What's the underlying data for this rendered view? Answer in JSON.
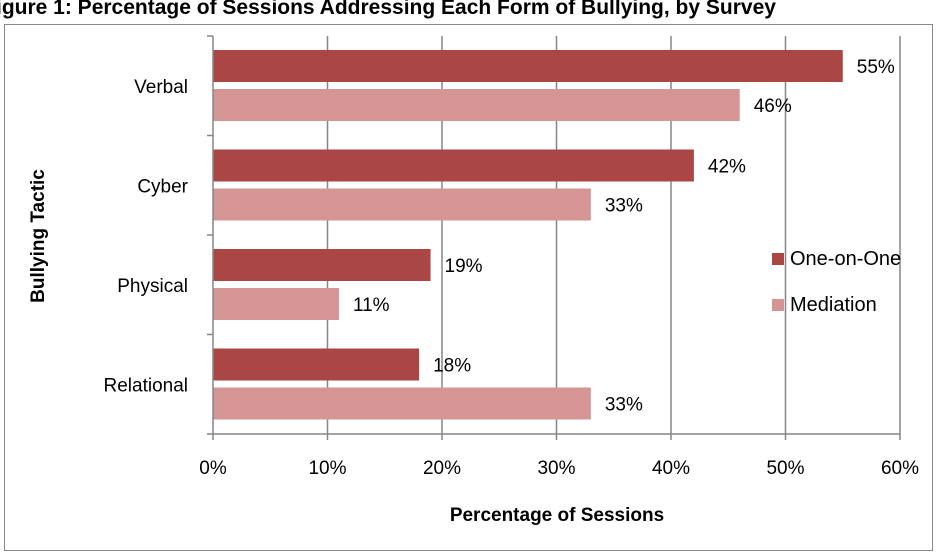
{
  "chart_data": {
    "type": "bar",
    "orientation": "horizontal",
    "title": "",
    "clipped_header": "igure 1: Percentage of Sessions Addressing Each Form of Bullying, by Survey",
    "xlabel": "Percentage of Sessions",
    "ylabel": "Bullying Tactic",
    "categories": [
      "Verbal",
      "Cyber",
      "Physical",
      "Relational"
    ],
    "series": [
      {
        "name": "One-on-One",
        "color": "#aa4644",
        "values": [
          55,
          42,
          19,
          18
        ],
        "labels": [
          "55%",
          "42%",
          "19%",
          "18%"
        ]
      },
      {
        "name": "Mediation",
        "color": "#d49594",
        "values": [
          46,
          33,
          11,
          33
        ],
        "labels": [
          "46%",
          "33%",
          "11%",
          "33%"
        ]
      }
    ],
    "xlim": [
      0,
      60
    ],
    "xticks": [
      "0%",
      "10%",
      "20%",
      "30%",
      "40%",
      "50%",
      "60%"
    ],
    "grid": "vertical",
    "legend_position": "right"
  }
}
